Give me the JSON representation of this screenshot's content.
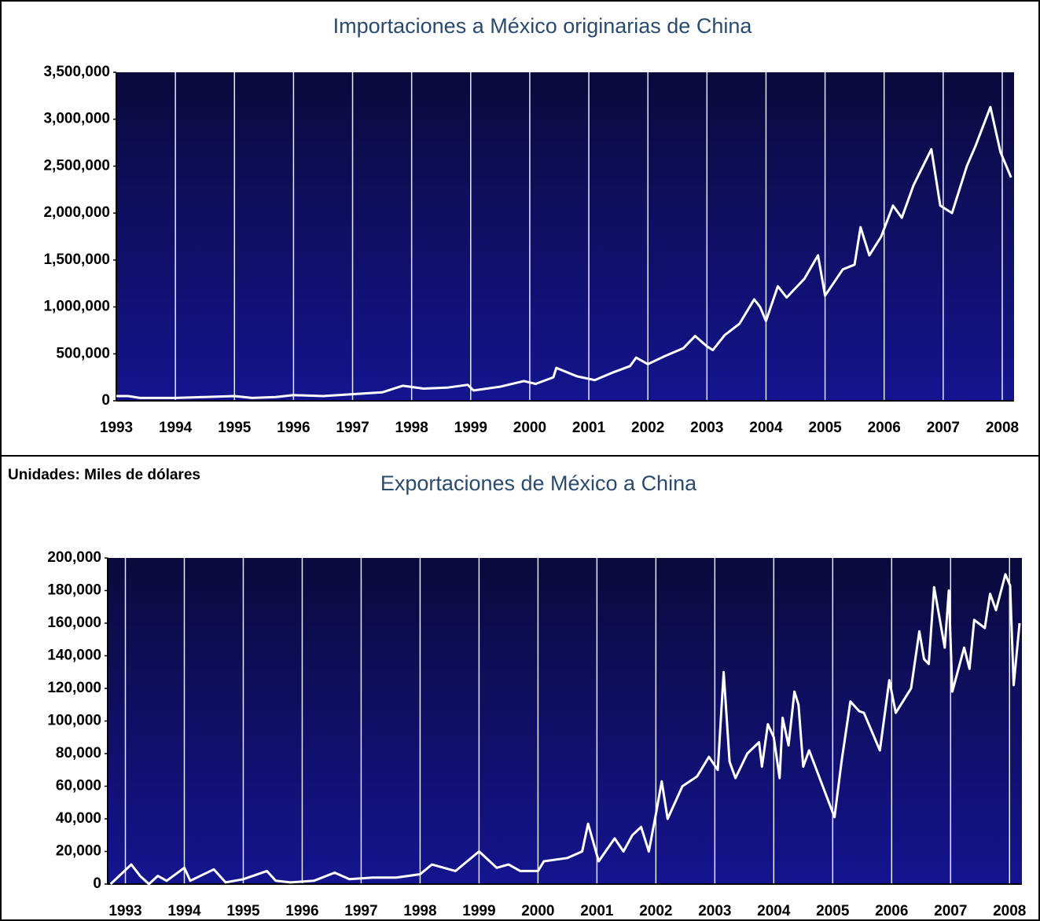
{
  "chart_data": [
    {
      "type": "line",
      "title": "Importaciones a México originarias de China",
      "x": [
        1993,
        1993.2,
        1993.4,
        1994,
        1994.5,
        1995,
        1995.3,
        1995.7,
        1996,
        1996.5,
        1997,
        1997.5,
        1997.85,
        1998.2,
        1998.6,
        1998.95,
        1999.05,
        1999.5,
        1999.9,
        2000.1,
        2000.4,
        2000.45,
        2000.8,
        2001.1,
        2001.4,
        2001.7,
        2001.8,
        2002.0,
        2002.3,
        2002.6,
        2002.8,
        2003.0,
        2003.1,
        2003.3,
        2003.55,
        2003.8,
        2003.9,
        2004.0,
        2004.2,
        2004.35,
        2004.65,
        2004.88,
        2005.0,
        2005.3,
        2005.5,
        2005.6,
        2005.75,
        2005.95,
        2006.15,
        2006.3,
        2006.5,
        2006.8,
        2006.95,
        2007.15,
        2007.4,
        2007.55,
        2007.8,
        2007.97,
        2008.15
      ],
      "series": [
        {
          "color": "#ffffff",
          "values": [
            50000,
            50000,
            30000,
            30000,
            40000,
            50000,
            30000,
            40000,
            60000,
            50000,
            70000,
            90000,
            160000,
            130000,
            140000,
            170000,
            110000,
            150000,
            210000,
            180000,
            250000,
            350000,
            260000,
            220000,
            300000,
            370000,
            460000,
            390000,
            480000,
            560000,
            690000,
            580000,
            540000,
            700000,
            820000,
            1080000,
            1000000,
            850000,
            1220000,
            1100000,
            1300000,
            1550000,
            1120000,
            1400000,
            1450000,
            1850000,
            1550000,
            1750000,
            2080000,
            1950000,
            2300000,
            2680000,
            2080000,
            2000000,
            2500000,
            2720000,
            3130000,
            2650000,
            2380000
          ]
        }
      ],
      "xlim": [
        1993,
        2008.2
      ],
      "xticks": [
        1993,
        1994,
        1995,
        1996,
        1997,
        1998,
        1999,
        2000,
        2001,
        2002,
        2003,
        2004,
        2005,
        2006,
        2007,
        2008
      ],
      "ylim": [
        0,
        3500000
      ],
      "yticks": [
        0,
        {
          "value": 500000,
          "label": "500,000"
        },
        {
          "value": 1000000,
          "label": "1,000,000"
        },
        {
          "value": 1500000,
          "label": "1,500,000"
        },
        {
          "value": 2000000,
          "label": "2,000,000"
        },
        {
          "value": 2500000,
          "label": "2,500,000"
        },
        {
          "value": 3000000,
          "label": "3,000,000"
        },
        {
          "value": 3500000,
          "label": "3,500,000"
        }
      ],
      "grid": true
    },
    {
      "type": "line",
      "title": "Exportaciones de México a China",
      "note": "Unidades: Miles de dólares",
      "x": [
        1992.75,
        1993.1,
        1993.25,
        1993.4,
        1993.55,
        1993.7,
        1994,
        1994.1,
        1994.5,
        1994.7,
        1995.0,
        1995.4,
        1995.55,
        1995.8,
        1996.2,
        1996.55,
        1996.8,
        1997.2,
        1997.6,
        1998.0,
        1998.2,
        1998.6,
        1998.8,
        1999.0,
        1999.3,
        1999.5,
        1999.7,
        2000.0,
        2000.1,
        2000.5,
        2000.75,
        2000.85,
        2001.03,
        2001.3,
        2001.45,
        2001.6,
        2001.75,
        2001.88,
        2002.0,
        2002.1,
        2002.2,
        2002.3,
        2002.45,
        2002.7,
        2002.9,
        2003.05,
        2003.15,
        2003.25,
        2003.35,
        2003.55,
        2003.75,
        2003.8,
        2003.9,
        2004.0,
        2004.1,
        2004.15,
        2004.25,
        2004.35,
        2004.42,
        2004.5,
        2004.6,
        2005.03,
        2005.15,
        2005.3,
        2005.45,
        2005.53,
        2005.8,
        2005.96,
        2006.07,
        2006.33,
        2006.47,
        2006.55,
        2006.63,
        2006.72,
        2006.9,
        2006.97,
        2007.03,
        2007.23,
        2007.32,
        2007.4,
        2007.58,
        2007.67,
        2007.77,
        2007.93,
        2008.01,
        2008.07,
        2008.17
      ],
      "series": [
        {
          "color": "#ffffff",
          "values": [
            0,
            12000,
            5000,
            0,
            5000,
            2000,
            10000,
            2000,
            9000,
            1000,
            3000,
            8000,
            2000,
            1000,
            2000,
            7000,
            3000,
            4000,
            4000,
            6000,
            12000,
            8000,
            14000,
            20000,
            10000,
            12000,
            8000,
            8000,
            14000,
            16000,
            20000,
            37000,
            14000,
            28000,
            20000,
            30000,
            35000,
            20000,
            43000,
            63000,
            40000,
            48000,
            60000,
            66000,
            78000,
            70000,
            130000,
            75000,
            65000,
            80000,
            87000,
            72000,
            98000,
            90000,
            65000,
            102000,
            85000,
            118000,
            110000,
            72000,
            82000,
            41000,
            75000,
            112000,
            106000,
            105000,
            82000,
            125000,
            105000,
            120000,
            155000,
            138000,
            135000,
            182000,
            145000,
            180000,
            118000,
            145000,
            132000,
            162000,
            157000,
            178000,
            168000,
            190000,
            183000,
            122000,
            160000
          ]
        }
      ],
      "xlim": [
        1992.7,
        2008.21
      ],
      "xticks": [
        1993,
        1994,
        1995,
        1996,
        1997,
        1998,
        1999,
        2000,
        2001,
        2002,
        2003,
        2004,
        2005,
        2006,
        2007,
        2008
      ],
      "ylim": [
        0,
        200000
      ],
      "yticks": [
        0,
        {
          "value": 20000,
          "label": "20,000"
        },
        {
          "value": 40000,
          "label": "40,000"
        },
        {
          "value": 60000,
          "label": "60,000"
        },
        {
          "value": 80000,
          "label": "80,000"
        },
        {
          "value": 100000,
          "label": "100,000"
        },
        {
          "value": 120000,
          "label": "120,000"
        },
        {
          "value": 140000,
          "label": "140,000"
        },
        {
          "value": 160000,
          "label": "160,000"
        },
        {
          "value": 180000,
          "label": "180,000"
        },
        {
          "value": 200000,
          "label": "200,000"
        }
      ],
      "grid": true
    }
  ]
}
